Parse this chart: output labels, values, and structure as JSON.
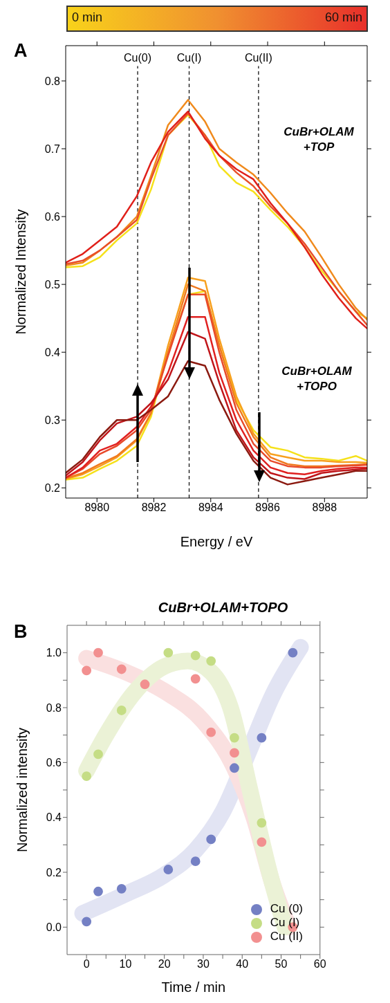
{
  "chart_data": [
    {
      "type": "line",
      "xlabel": "Energy / eV",
      "ylabel": "Normalized Intensity",
      "xlim": [
        8978.9,
        8989.5
      ],
      "ylim": [
        0.185,
        0.852
      ],
      "xticks": [
        8980,
        8982,
        8984,
        8986,
        8988
      ],
      "yticks": [
        0.2,
        0.3,
        0.4,
        0.5,
        0.6,
        0.7,
        0.8
      ],
      "clim": [
        0,
        60
      ],
      "cticks": [
        {
          "value": 0,
          "label": "0 min"
        },
        {
          "value": 60,
          "label": "60 min"
        }
      ],
      "x": [
        8978.9,
        8979.5,
        8980.1,
        8980.7,
        8981.4,
        8981.9,
        8982.5,
        8983.2,
        8983.8,
        8984.3,
        8984.9,
        8985.5,
        8986.1,
        8986.7,
        8987.3,
        8987.9,
        8988.5,
        8989.1,
        8989.5
      ],
      "ref_lines": [
        {
          "axis": "x",
          "value": 8981.43,
          "label": "Cu(0)",
          "line_style": "dashed",
          "color": "#000000"
        },
        {
          "axis": "x",
          "value": 8983.24,
          "label": "Cu(I)",
          "line_style": "dashed",
          "color": "#000000"
        },
        {
          "axis": "x",
          "value": 8985.68,
          "label": "Cu(II)",
          "line_style": "dashed",
          "color": "#000000"
        }
      ],
      "annotations": [
        "A",
        "CuBr+OLAM +TOP",
        "CuBr+OLAM +TOPO"
      ],
      "series": [
        {
          "color": "#f5e11a",
          "values": [
            0.525,
            0.527,
            0.54,
            0.565,
            0.59,
            0.64,
            0.72,
            0.75,
            0.72,
            0.675,
            0.65,
            0.637,
            0.61,
            0.585,
            0.555,
            0.52,
            0.49,
            0.46,
            0.45
          ]
        },
        {
          "color": "#f08a1c",
          "values": [
            0.528,
            0.532,
            0.55,
            0.57,
            0.6,
            0.66,
            0.735,
            0.772,
            0.74,
            0.7,
            0.68,
            0.662,
            0.635,
            0.605,
            0.578,
            0.54,
            0.5,
            0.465,
            0.448
          ]
        },
        {
          "color": "#e8502a",
          "values": [
            0.53,
            0.535,
            0.55,
            0.57,
            0.595,
            0.655,
            0.72,
            0.752,
            0.72,
            0.69,
            0.665,
            0.645,
            0.615,
            0.59,
            0.56,
            0.525,
            0.49,
            0.46,
            0.44
          ]
        },
        {
          "color": "#e0201a",
          "values": [
            0.532,
            0.545,
            0.565,
            0.585,
            0.63,
            0.68,
            0.725,
            0.755,
            0.715,
            0.69,
            0.67,
            0.655,
            0.62,
            0.59,
            0.555,
            0.515,
            0.48,
            0.45,
            0.435
          ]
        },
        {
          "color": "#f5e11a",
          "values": [
            0.212,
            0.215,
            0.228,
            0.24,
            0.262,
            0.305,
            0.4,
            0.485,
            0.49,
            0.41,
            0.33,
            0.285,
            0.26,
            0.255,
            0.245,
            0.243,
            0.24,
            0.247,
            0.24
          ]
        },
        {
          "color": "#f7a01e",
          "values": [
            0.213,
            0.22,
            0.232,
            0.245,
            0.27,
            0.31,
            0.41,
            0.51,
            0.505,
            0.42,
            0.335,
            0.28,
            0.25,
            0.245,
            0.24,
            0.24,
            0.238,
            0.238,
            0.237
          ]
        },
        {
          "color": "#f07a20",
          "values": [
            0.214,
            0.222,
            0.235,
            0.247,
            0.272,
            0.31,
            0.4,
            0.5,
            0.49,
            0.41,
            0.325,
            0.275,
            0.245,
            0.235,
            0.232,
            0.232,
            0.233,
            0.234,
            0.235
          ]
        },
        {
          "color": "#e84a2a",
          "values": [
            0.215,
            0.228,
            0.25,
            0.262,
            0.285,
            0.315,
            0.395,
            0.485,
            0.485,
            0.4,
            0.315,
            0.265,
            0.24,
            0.232,
            0.23,
            0.23,
            0.232,
            0.233,
            0.234
          ]
        },
        {
          "color": "#e02020",
          "values": [
            0.215,
            0.23,
            0.255,
            0.265,
            0.29,
            0.32,
            0.37,
            0.452,
            0.452,
            0.37,
            0.3,
            0.255,
            0.23,
            0.222,
            0.22,
            0.225,
            0.228,
            0.23,
            0.23
          ]
        },
        {
          "color": "#c0151a",
          "values": [
            0.218,
            0.238,
            0.27,
            0.295,
            0.305,
            0.325,
            0.36,
            0.43,
            0.42,
            0.355,
            0.285,
            0.245,
            0.222,
            0.215,
            0.213,
            0.222,
            0.225,
            0.227,
            0.228
          ]
        },
        {
          "color": "#8b1a10",
          "values": [
            0.222,
            0.242,
            0.275,
            0.3,
            0.3,
            0.315,
            0.335,
            0.387,
            0.38,
            0.33,
            0.28,
            0.24,
            0.215,
            0.205,
            0.21,
            0.215,
            0.22,
            0.225,
            0.225
          ]
        }
      ]
    },
    {
      "type": "scatter",
      "title": "CuBr+OLAM+TOPO",
      "xlabel": "Time / min",
      "ylabel": "Normalized intensity",
      "xlim": [
        -5,
        60
      ],
      "ylim": [
        -0.1,
        1.1
      ],
      "xticks": [
        0,
        {
          "value": 5,
          "label": null
        },
        10,
        {
          "value": 15,
          "label": null
        },
        20,
        {
          "value": 25,
          "label": null
        },
        30,
        {
          "value": 35,
          "label": null
        },
        40,
        {
          "value": 45,
          "label": null
        },
        50,
        {
          "value": 55,
          "label": null
        },
        60
      ],
      "yticks": [
        {
          "value": 0,
          "label": "0.0"
        },
        {
          "value": 0.1,
          "label": null
        },
        {
          "value": 0.2,
          "label": "0.2"
        },
        {
          "value": 0.3,
          "label": null
        },
        {
          "value": 0.4,
          "label": "0.4"
        },
        {
          "value": 0.5,
          "label": null
        },
        {
          "value": 0.6,
          "label": "0.6"
        },
        {
          "value": 0.7,
          "label": null
        },
        {
          "value": 0.8,
          "label": "0.8"
        },
        {
          "value": 0.9,
          "label": null
        },
        {
          "value": 1,
          "label": "1.0"
        }
      ],
      "legend": "bottom right",
      "annotations": [
        "B"
      ],
      "series": [
        {
          "type": "line",
          "marker": "none",
          "color": "#e2e4f3",
          "x": [
            -1,
            10,
            20,
            28,
            35,
            42,
            48,
            55
          ],
          "values": [
            0.05,
            0.12,
            0.19,
            0.28,
            0.42,
            0.65,
            0.85,
            1.02
          ]
        },
        {
          "type": "line",
          "marker": "none",
          "color": "#fae0e0",
          "x": [
            0,
            10,
            20,
            30,
            38,
            43,
            48,
            52
          ],
          "values": [
            0.98,
            0.93,
            0.86,
            0.75,
            0.58,
            0.4,
            0.15,
            0.0
          ]
        },
        {
          "type": "line",
          "marker": "none",
          "color": "#ebf2d6",
          "x": [
            0,
            5,
            12,
            20,
            26,
            32,
            37,
            42,
            47,
            51
          ],
          "values": [
            0.57,
            0.7,
            0.85,
            0.95,
            0.97,
            0.93,
            0.8,
            0.5,
            0.2,
            0.0
          ]
        },
        {
          "name": "Cu (0)",
          "marker": "circle",
          "color": "#7480c4",
          "x": [
            0,
            3,
            9,
            21,
            28,
            32,
            38,
            45,
            53
          ],
          "values": [
            0.02,
            0.13,
            0.14,
            0.21,
            0.24,
            0.32,
            0.58,
            0.69,
            1.0
          ]
        },
        {
          "name": "Cu (I)",
          "marker": "circle",
          "color": "#c5dd85",
          "x": [
            0,
            3,
            9,
            21,
            28,
            32,
            38,
            45,
            53
          ],
          "values": [
            0.55,
            0.63,
            0.79,
            1.0,
            0.99,
            0.97,
            0.69,
            0.38,
            0.0
          ]
        },
        {
          "name": "Cu (II)",
          "marker": "circle",
          "color": "#f29090",
          "x": [
            0,
            3,
            9,
            15,
            28,
            32,
            38,
            45,
            53
          ],
          "values": [
            0.935,
            1.0,
            0.94,
            0.885,
            0.905,
            0.71,
            0.635,
            0.31,
            0.0
          ]
        }
      ]
    }
  ]
}
